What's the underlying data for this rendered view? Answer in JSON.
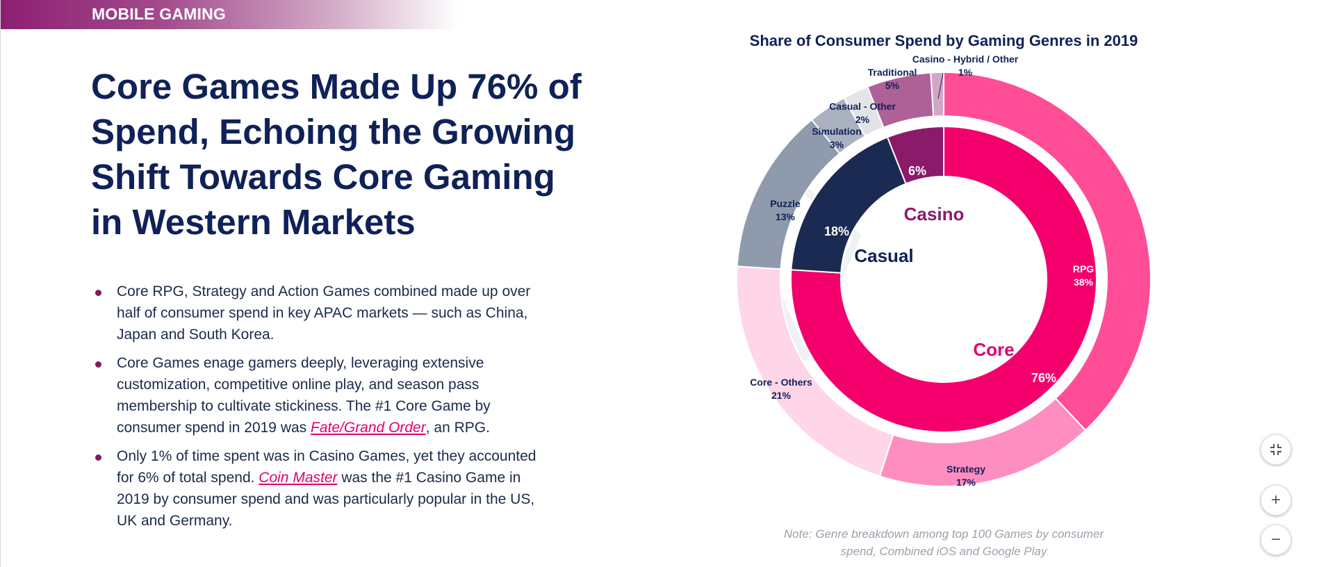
{
  "section": {
    "label": "MOBILE GAMING"
  },
  "headline": "Core Games Made Up 76% of Spend, Echoing the Growing Shift Towards Core Gaming in Western Markets",
  "bullets": [
    {
      "text": "Core RPG, Strategy and Action Games combined made up over half of consumer spend in key APAC markets — such as China, Japan and South Korea."
    },
    {
      "before": "Core Games enage gamers deeply, leveraging extensive customization, competitive online play, and season pass membership to cultivate stickiness. The #1 Core Game by consumer spend in 2019 was ",
      "link": "Fate/Grand Order",
      "after": ", an RPG."
    },
    {
      "before": "Only 1% of time spent was in Casino Games, yet they accounted for 6% of total spend. ",
      "link": "Coin Master",
      "after": " was the #1 Casino Game in 2019 by consumer spend and was particularly popular in the US, UK and Germany."
    }
  ],
  "note": "Note: Genre breakdown among top 100 Games by consumer spend, Combined iOS and Google Play",
  "controls": {
    "fit_icon": "collapse-icon",
    "zoom_in": "+",
    "zoom_out": "−"
  },
  "chart_data": {
    "type": "pie",
    "title": "Share of Consumer Spend by Gaming Genres in 2019",
    "inner": [
      {
        "name": "Core",
        "value": 76,
        "label": "76%",
        "color": "#f4006d"
      },
      {
        "name": "Casual",
        "value": 18,
        "label": "18%",
        "color": "#1b2a52"
      },
      {
        "name": "Casino",
        "value": 6,
        "label": "6%",
        "color": "#8b1a6b"
      }
    ],
    "outer": [
      {
        "name": "RPG",
        "value": 38,
        "pct": "38%",
        "color": "#ff4d97"
      },
      {
        "name": "Strategy",
        "value": 17,
        "pct": "17%",
        "color": "#ff8ec0"
      },
      {
        "name": "Core - Others",
        "value": 21,
        "pct": "21%",
        "color": "#ffd5e8"
      },
      {
        "name": "Puzzle",
        "value": 13,
        "pct": "13%",
        "color": "#8f9aac"
      },
      {
        "name": "Simulation",
        "value": 3,
        "pct": "3%",
        "color": "#aab1bf"
      },
      {
        "name": "Casual - Other",
        "value": 2,
        "pct": "2%",
        "color": "#e3e4e8"
      },
      {
        "name": "Traditional",
        "value": 5,
        "pct": "5%",
        "color": "#ad6197"
      },
      {
        "name": "Casino - Hybrid / Other",
        "value": 1,
        "pct": "1%",
        "color": "#d3a6c6"
      }
    ]
  }
}
